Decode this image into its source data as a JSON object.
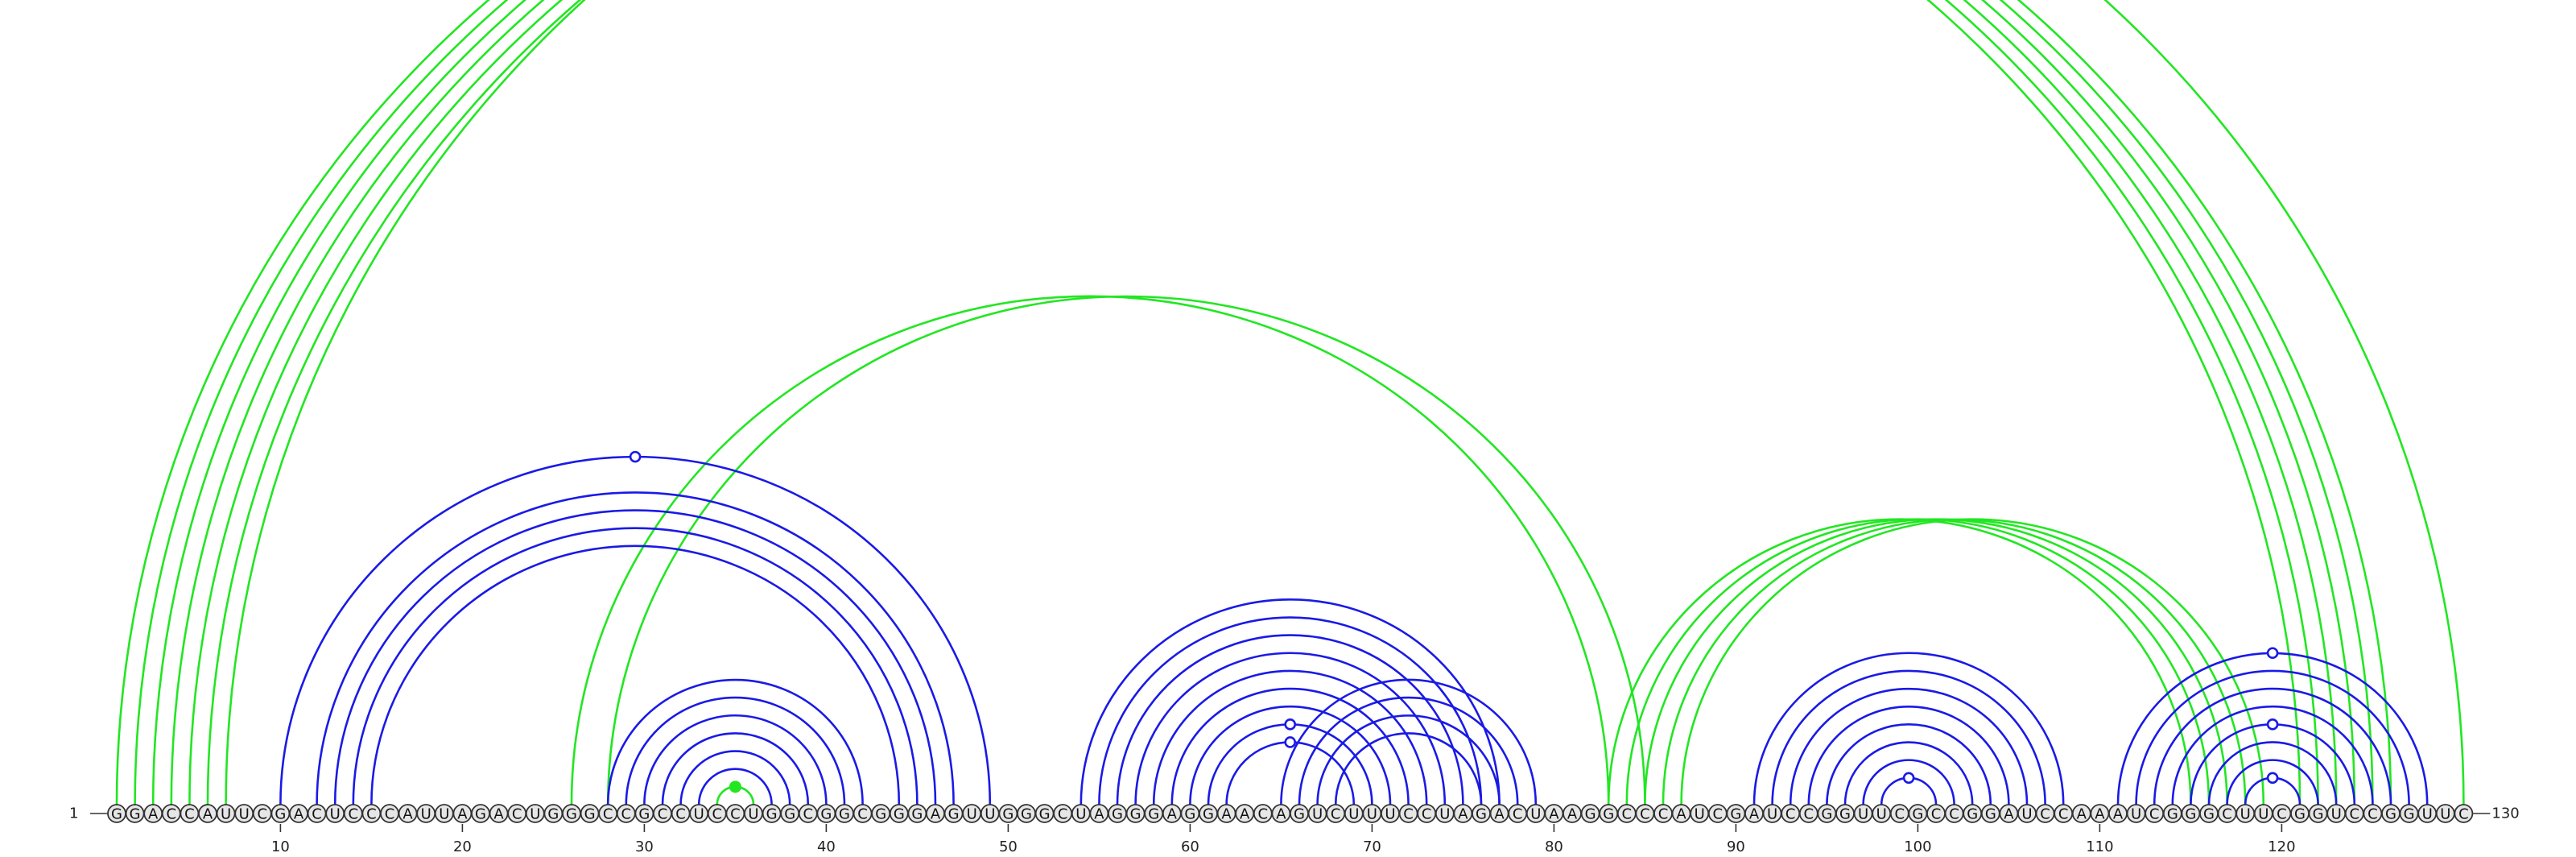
{
  "sequence": "GGACCAUUCGACUCCCAUUAGACUGGGCCGCCUCCUGGCGGCGGGAGUUGGGCUAGGGAGGAACAGUCUUUCCUAGACUAAGGCCCAUCGAUCCGGUUCGCCGGAUCCAAAUCGGGCUUCGGUCCGGUUC",
  "start_label": "1",
  "end_label": "130",
  "axis_ticks": [
    "10",
    "20",
    "30",
    "40",
    "50",
    "60",
    "70",
    "80",
    "90",
    "100",
    "110",
    "120"
  ],
  "colors": {
    "blue_arcs": "#1a1ae6",
    "green_arcs": "#22e622",
    "backbone": "#333333"
  },
  "chart_data": {
    "type": "arc-diagram",
    "length": 130,
    "blue_pairs": [
      [
        10,
        49
      ],
      [
        12,
        47
      ],
      [
        13,
        46
      ],
      [
        14,
        45
      ],
      [
        15,
        44
      ],
      [
        28,
        42
      ],
      [
        29,
        41
      ],
      [
        30,
        40
      ],
      [
        31,
        39
      ],
      [
        32,
        38
      ],
      [
        33,
        37
      ],
      [
        54,
        77
      ],
      [
        55,
        76
      ],
      [
        56,
        75
      ],
      [
        57,
        74
      ],
      [
        58,
        73
      ],
      [
        59,
        72
      ],
      [
        60,
        71
      ],
      [
        61,
        70
      ],
      [
        62,
        69
      ],
      [
        65,
        79
      ],
      [
        66,
        78
      ],
      [
        67,
        77
      ],
      [
        68,
        76
      ],
      [
        91,
        108
      ],
      [
        92,
        107
      ],
      [
        93,
        106
      ],
      [
        94,
        105
      ],
      [
        95,
        104
      ],
      [
        96,
        103
      ],
      [
        97,
        102
      ],
      [
        98,
        101
      ],
      [
        111,
        128
      ],
      [
        112,
        127
      ],
      [
        113,
        126
      ],
      [
        114,
        125
      ],
      [
        115,
        124
      ],
      [
        116,
        123
      ],
      [
        117,
        122
      ],
      [
        118,
        121
      ]
    ],
    "green_pairs": [
      [
        1,
        121
      ],
      [
        2,
        122
      ],
      [
        3,
        123
      ],
      [
        4,
        124
      ],
      [
        5,
        125
      ],
      [
        6,
        126
      ],
      [
        7,
        130
      ],
      [
        26,
        83
      ],
      [
        28,
        85
      ],
      [
        83,
        115
      ],
      [
        84,
        116
      ],
      [
        85,
        117
      ],
      [
        86,
        118
      ],
      [
        87,
        119
      ],
      [
        34,
        36
      ]
    ],
    "blue_markers": [
      {
        "pair": [
          10,
          49
        ]
      },
      {
        "pair": [
          61,
          70
        ]
      },
      {
        "pair": [
          62,
          69
        ]
      },
      {
        "pair": [
          98,
          101
        ]
      },
      {
        "pair": [
          111,
          128
        ]
      },
      {
        "pair": [
          115,
          124
        ]
      },
      {
        "pair": [
          118,
          121
        ]
      }
    ],
    "green_markers": [
      {
        "pair": [
          7,
          130
        ]
      }
    ],
    "green_filled_markers": [
      {
        "pair": [
          34,
          36
        ]
      }
    ]
  }
}
